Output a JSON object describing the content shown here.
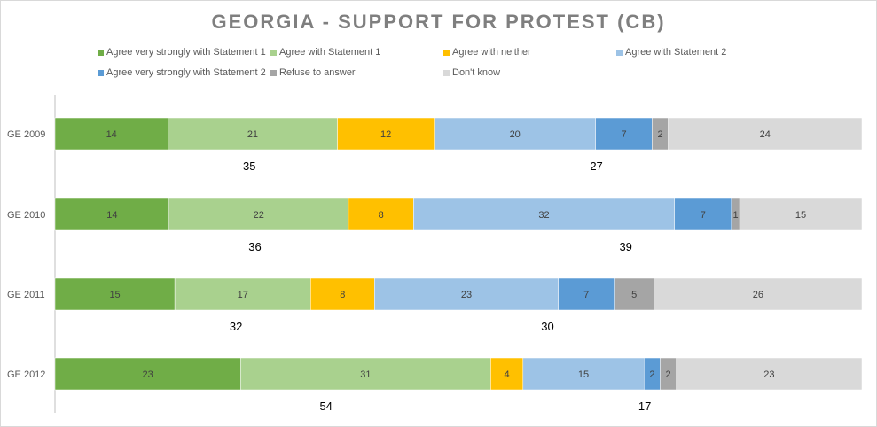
{
  "chart_data": {
    "type": "bar",
    "orientation": "horizontal",
    "stacked": true,
    "title": "GEORGIA - SUPPORT FOR PROTEST (CB)",
    "categories": [
      "GE 2009",
      "GE 2010",
      "GE 2011",
      "GE 2012"
    ],
    "series": [
      {
        "name": "Agree very strongly with Statement 1",
        "color": "#70ad47",
        "values": [
          14,
          14,
          15,
          23
        ]
      },
      {
        "name": "Agree with Statement 1",
        "color": "#a9d18e",
        "values": [
          21,
          22,
          17,
          31
        ]
      },
      {
        "name": "Agree with neither",
        "color": "#ffc000",
        "values": [
          12,
          8,
          8,
          4
        ]
      },
      {
        "name": "Agree with Statement 2",
        "color": "#9dc3e6",
        "values": [
          20,
          32,
          23,
          15
        ]
      },
      {
        "name": "Agree very strongly with Statement 2",
        "color": "#5b9bd5",
        "values": [
          7,
          7,
          7,
          2
        ]
      },
      {
        "name": "Refuse to answer",
        "color": "#a5a5a5",
        "values": [
          2,
          1,
          5,
          2
        ]
      },
      {
        "name": "Don't know",
        "color": "#d9d9d9",
        "values": [
          24,
          15,
          26,
          23
        ]
      }
    ],
    "statement1_totals": [
      35,
      36,
      32,
      54
    ],
    "statement2_totals": [
      27,
      39,
      30,
      17
    ],
    "legend_position": "top",
    "grid": false,
    "xlim": [
      0,
      100
    ]
  }
}
